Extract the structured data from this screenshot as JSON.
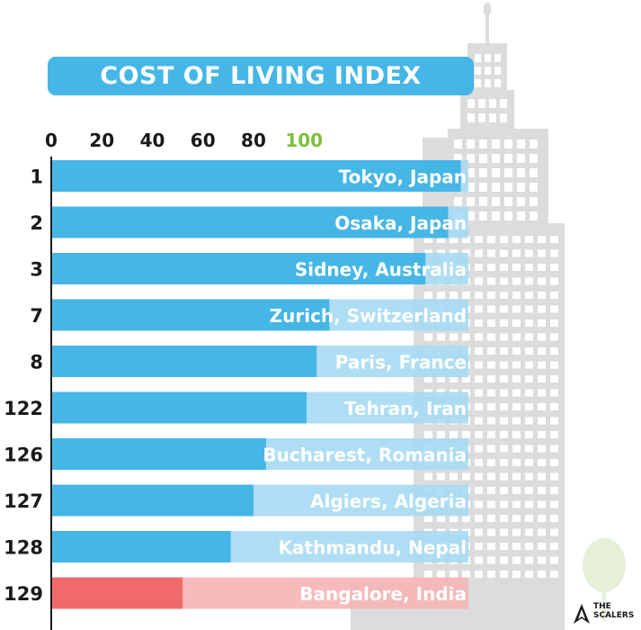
{
  "chart_data": {
    "type": "bar",
    "title": "COST OF LIVING INDEX",
    "xlabel": "",
    "ylabel": "",
    "x_ticks": [
      "0",
      "20",
      "40",
      "60",
      "80",
      "100"
    ],
    "highlight_tick": "100",
    "xlim": [
      0,
      165
    ],
    "rows": [
      {
        "rank": "1",
        "city": "Tokyo, Japan",
        "value": 162,
        "highlight": false
      },
      {
        "rank": "2",
        "city": "Osaka, Japan",
        "value": 157,
        "highlight": false
      },
      {
        "rank": "3",
        "city": "Sidney, Australia",
        "value": 148,
        "highlight": false
      },
      {
        "rank": "7",
        "city": "Zurich, Switzerland",
        "value": 110,
        "highlight": false
      },
      {
        "rank": "8",
        "city": "Paris, France",
        "value": 105,
        "highlight": false
      },
      {
        "rank": "122",
        "city": "Tehran, Iran",
        "value": 101,
        "highlight": false
      },
      {
        "rank": "126",
        "city": "Bucharest, Romania",
        "value": 85,
        "highlight": false
      },
      {
        "rank": "127",
        "city": "Algiers, Algeria",
        "value": 80,
        "highlight": false
      },
      {
        "rank": "128",
        "city": "Kathmandu, Nepal",
        "value": 71,
        "highlight": false
      },
      {
        "rank": "129",
        "city": "Bangalore, India",
        "value": 52,
        "highlight": true
      }
    ]
  },
  "colors": {
    "bar": "#45b6e6",
    "bar_track": "#a6daf3",
    "highlight_bar": "#f06a6b",
    "highlight_track": "#f5b5b6",
    "tick_highlight": "#7cbf3b",
    "building": "#dcdcdc",
    "window": "#ffffff",
    "tree": "#e6efd9"
  },
  "logo": {
    "line1": "THE",
    "line2": "SCALERS"
  }
}
